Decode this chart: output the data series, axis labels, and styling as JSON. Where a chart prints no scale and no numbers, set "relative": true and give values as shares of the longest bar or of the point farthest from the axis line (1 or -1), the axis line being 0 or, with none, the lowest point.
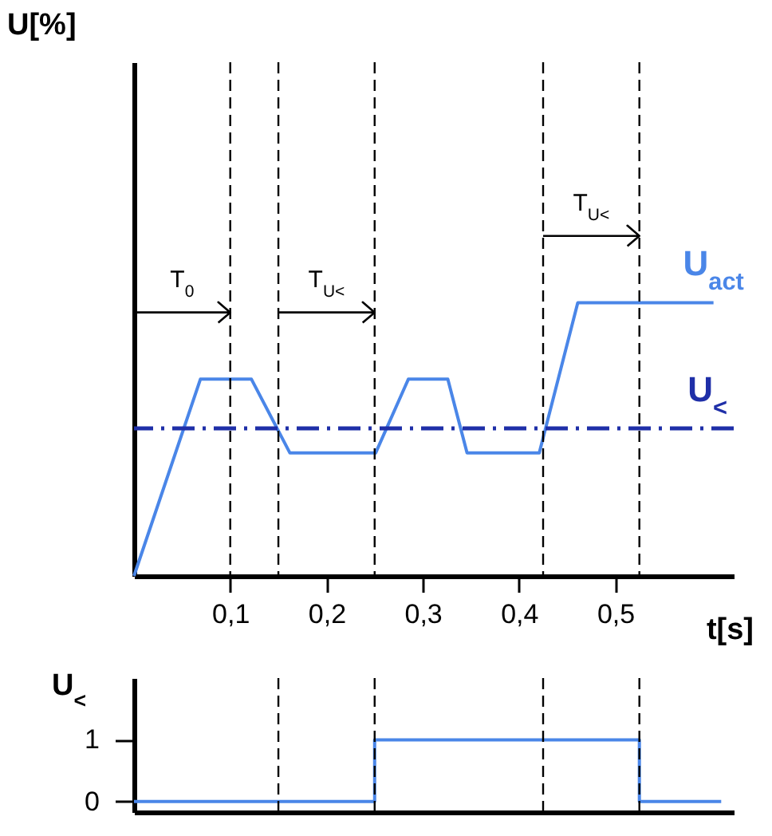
{
  "chart_data": [
    {
      "type": "line",
      "relative": true,
      "ylabel": "U[%]",
      "xlabel": "t[s]",
      "xlim": [
        0,
        0.623
      ],
      "xticks": [
        {
          "value": 0.1,
          "label": "0,1"
        },
        {
          "value": 0.2,
          "label": "0,2"
        },
        {
          "value": 0.3,
          "label": "0,3"
        },
        {
          "value": 0.4,
          "label": "0,4"
        },
        {
          "value": 0.5,
          "label": "0,5"
        }
      ],
      "series": [
        {
          "name": "U$_{act}$",
          "color": "#4a86e8",
          "x": [
            0,
            0.069,
            0.122,
            0.162,
            0.251,
            0.285,
            0.326,
            0.346,
            0.421,
            0.461,
            0.602
          ],
          "values": [
            0,
            0.72,
            0.72,
            0.45,
            0.45,
            0.72,
            0.72,
            0.45,
            0.45,
            1,
            1
          ]
        }
      ],
      "ref_lines": [
        {
          "axis": "y",
          "value": 0.54,
          "label": "U$_{<}$",
          "color": "#1f2fa8",
          "line_style": "dashed"
        },
        {
          "axis": "x",
          "value": 0.1,
          "label": null,
          "color": "#000000",
          "line_style": "dashed"
        },
        {
          "axis": "x",
          "value": 0.15,
          "label": null,
          "color": "#000000",
          "line_style": "dashed"
        },
        {
          "axis": "x",
          "value": 0.25,
          "label": null,
          "color": "#000000",
          "line_style": "dashed"
        },
        {
          "axis": "x",
          "value": 0.425,
          "label": null,
          "color": "#000000",
          "line_style": "dashed"
        },
        {
          "axis": "x",
          "value": 0.525,
          "label": null,
          "color": "#000000",
          "line_style": "dashed"
        }
      ],
      "annotations": [
        "T$_{0}$",
        "T$_{U<}$",
        "T$_{U<}$"
      ],
      "grid": false,
      "tick_labels": "x"
    },
    {
      "type": "step",
      "ylabel": "U$_{<}$",
      "xlim": [
        0,
        0.623
      ],
      "ylim": [
        -0.17,
        2
      ],
      "yticks": [
        0,
        1
      ],
      "series": [
        {
          "color": "#4a86e8",
          "x": [
            0,
            0.25,
            0.525,
            0.61
          ],
          "values": [
            0,
            1,
            0,
            0
          ]
        }
      ],
      "ref_lines": [
        {
          "axis": "x",
          "value": 0.15,
          "label": null,
          "color": "#000000",
          "line_style": "dashed"
        },
        {
          "axis": "x",
          "value": 0.25,
          "label": null,
          "color": "#000000",
          "line_style": "dashed"
        },
        {
          "axis": "x",
          "value": 0.425,
          "label": null,
          "color": "#000000",
          "line_style": "dashed"
        },
        {
          "axis": "x",
          "value": 0.525,
          "label": null,
          "color": "#000000",
          "line_style": "dashed"
        }
      ],
      "grid": false,
      "tick_labels": "y"
    }
  ]
}
